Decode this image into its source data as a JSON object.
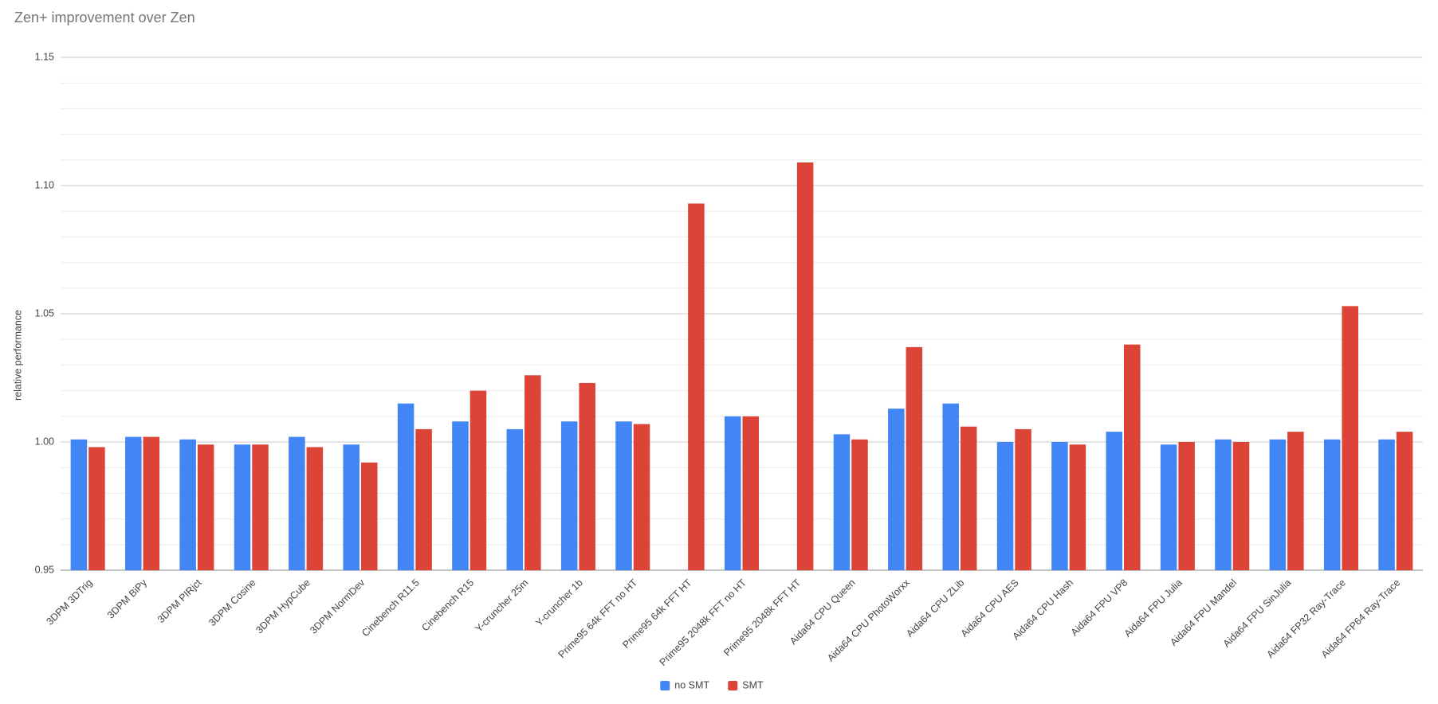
{
  "chart_data": {
    "type": "bar",
    "title": "Zen+ improvement over Zen",
    "y_label": "relative performance",
    "categories": [
      "3DPM 3DTrig",
      "3DPM BiPy",
      "3DPM PIRjct",
      "3DPM Cosine",
      "3DPM HypCube",
      "3DPM NormDev",
      "Cinebench R11.5",
      "Cinebench R15",
      "Y-cruncher 25m",
      "Y-cruncher 1b",
      "Prime95 64k FFT no HT",
      "Prime95 64k FFT HT",
      "Prime95 2048k FFT no HT",
      "Prime95 2048k FFT HT",
      "Aida64 CPU Queen",
      "Aida64 CPU PhotoWorxx",
      "Aida64 CPU ZLib",
      "Aida64 CPU AES",
      "Aida64 CPU Hash",
      "Aida64 FPU VP8",
      "Aida64 FPU Julia",
      "Aida64 FPU Mandel",
      "Aida64 FPU SinJulia",
      "Aida64 FP32 Ray-Trace",
      "Aida64 FP64 Ray-Trace"
    ],
    "series": [
      {
        "name": "no SMT",
        "color": "#4285f4",
        "values": [
          1.001,
          1.002,
          1.001,
          0.999,
          1.002,
          0.999,
          1.015,
          1.008,
          1.005,
          1.008,
          1.008,
          null,
          1.01,
          null,
          1.003,
          1.013,
          1.015,
          1.0,
          1.0,
          1.004,
          0.999,
          1.001,
          1.001,
          1.001,
          1.001
        ]
      },
      {
        "name": "SMT",
        "color": "#db4437",
        "values": [
          0.998,
          1.002,
          0.999,
          0.999,
          0.998,
          0.992,
          1.005,
          1.02,
          1.026,
          1.023,
          1.007,
          1.093,
          1.01,
          1.109,
          1.001,
          1.037,
          1.006,
          1.005,
          0.999,
          1.038,
          1.0,
          1.0,
          1.004,
          1.053,
          1.004
        ]
      }
    ],
    "ylim": [
      0.95,
      1.15
    ],
    "yticks": [
      {
        "value": 0.95,
        "label": "0.95"
      },
      {
        "value": 1.0,
        "label": "1.00"
      },
      {
        "value": 1.05,
        "label": "1.05"
      },
      {
        "value": 1.1,
        "label": "1.10"
      },
      {
        "value": 1.15,
        "label": "1.15"
      }
    ],
    "grid": true,
    "legend": "bottom"
  }
}
